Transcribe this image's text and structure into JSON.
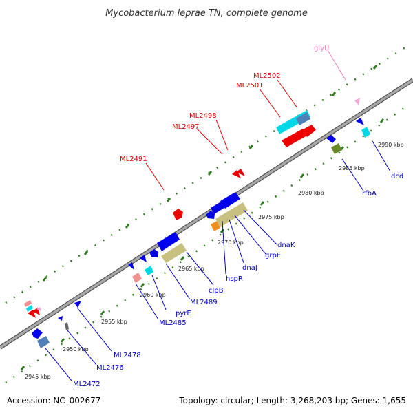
{
  "title": "Mycobacterium leprae TN, complete genome",
  "footer": {
    "accession": "Accession: NC_002677",
    "topology": "Topology: circular; Length: 3,268,203 bp; Genes: 1,655"
  },
  "colors": {
    "backbone": "#909090",
    "backbone_dark": "#555555",
    "tick": "#2e7d1e",
    "label_red": "#e00000",
    "label_blue": "#0000c8",
    "label_pink": "#f080c0",
    "gene_blue": "#0000ee",
    "gene_cyan": "#00d8e8",
    "gene_steel": "#4f80b8",
    "gene_red": "#ee0000",
    "gene_pink": "#f09090",
    "gene_khaki": "#c8c080",
    "gene_orange": "#f09020",
    "gene_olive": "#6a8a2a",
    "gene_lightpink": "#f4a8d8"
  },
  "scale": {
    "ticks": [
      "2945 kbp",
      "2950 kbp",
      "2955 kbp",
      "2960 kbp",
      "2965 kbp",
      "2970 kbp",
      "2975 kbp",
      "2980 kbp",
      "2985 kbp",
      "2990 kbp"
    ]
  },
  "labels": {
    "top": [
      "glyU",
      "ML2502",
      "ML2501",
      "ML2498",
      "ML2497",
      "ML2491"
    ],
    "bottom": [
      "dcd",
      "rfbA",
      "dnaK",
      "grpE",
      "dnaJ",
      "hspR",
      "clpB",
      "ML2489",
      "pyrE",
      "ML2485",
      "ML2478",
      "ML2476",
      "ML2472"
    ]
  }
}
